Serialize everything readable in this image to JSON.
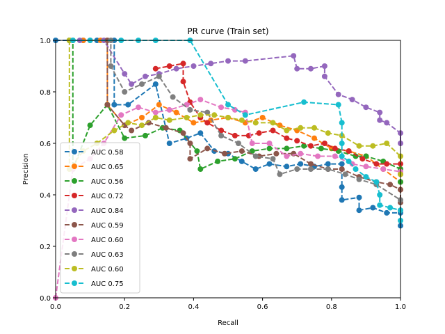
{
  "chart_data": {
    "type": "line",
    "title": "PR curve (Train set)",
    "xlabel": "Recall",
    "ylabel": "Precision",
    "xlim": [
      0.0,
      1.0
    ],
    "ylim": [
      0.0,
      1.0
    ],
    "xticks": [
      "0.0",
      "0.2",
      "0.4",
      "0.6",
      "0.8",
      "1.0"
    ],
    "yticks": [
      "0.0",
      "0.2",
      "0.4",
      "0.6",
      "0.8",
      "1.0"
    ],
    "grid": false,
    "legend_position": "lower-left",
    "line_style": "dashed",
    "marker": "circle",
    "series": [
      {
        "name": "AUC 0.58",
        "color": "#1f77b4",
        "points": [
          [
            0.0,
            1.0
          ],
          [
            0.04,
            1.0
          ],
          [
            0.08,
            1.0
          ],
          [
            0.12,
            1.0
          ],
          [
            0.17,
            1.0
          ],
          [
            0.17,
            0.75
          ],
          [
            0.21,
            0.75
          ],
          [
            0.29,
            0.83
          ],
          [
            0.33,
            0.6
          ],
          [
            0.38,
            0.62
          ],
          [
            0.42,
            0.64
          ],
          [
            0.46,
            0.57
          ],
          [
            0.5,
            0.56
          ],
          [
            0.54,
            0.53
          ],
          [
            0.58,
            0.5
          ],
          [
            0.62,
            0.52
          ],
          [
            0.67,
            0.51
          ],
          [
            0.71,
            0.52
          ],
          [
            0.75,
            0.51
          ],
          [
            0.79,
            0.52
          ],
          [
            0.83,
            0.52
          ],
          [
            0.83,
            0.43
          ],
          [
            0.83,
            0.38
          ],
          [
            0.88,
            0.39
          ],
          [
            0.88,
            0.34
          ],
          [
            0.92,
            0.35
          ],
          [
            0.96,
            0.33
          ],
          [
            1.0,
            0.33
          ],
          [
            1.0,
            0.28
          ]
        ]
      },
      {
        "name": "AUC 0.65",
        "color": "#ff7f0e",
        "points": [
          [
            0.04,
            1.0
          ],
          [
            0.08,
            1.0
          ],
          [
            0.13,
            1.0
          ],
          [
            0.15,
            1.0
          ],
          [
            0.15,
            0.75
          ],
          [
            0.2,
            0.67
          ],
          [
            0.25,
            0.7
          ],
          [
            0.3,
            0.75
          ],
          [
            0.35,
            0.72
          ],
          [
            0.4,
            0.68
          ],
          [
            0.45,
            0.69
          ],
          [
            0.5,
            0.7
          ],
          [
            0.55,
            0.68
          ],
          [
            0.6,
            0.7
          ],
          [
            0.65,
            0.67
          ],
          [
            0.7,
            0.65
          ],
          [
            0.75,
            0.62
          ],
          [
            0.8,
            0.58
          ],
          [
            0.85,
            0.57
          ],
          [
            0.9,
            0.55
          ],
          [
            0.95,
            0.5
          ],
          [
            1.0,
            0.45
          ],
          [
            1.0,
            0.42
          ]
        ]
      },
      {
        "name": "AUC 0.56",
        "color": "#2ca02c",
        "points": [
          [
            0.04,
            1.0
          ],
          [
            0.05,
            1.0
          ],
          [
            0.05,
            0.5
          ],
          [
            0.1,
            0.67
          ],
          [
            0.15,
            0.75
          ],
          [
            0.2,
            0.62
          ],
          [
            0.26,
            0.63
          ],
          [
            0.31,
            0.66
          ],
          [
            0.36,
            0.65
          ],
          [
            0.41,
            0.57
          ],
          [
            0.42,
            0.5
          ],
          [
            0.47,
            0.53
          ],
          [
            0.52,
            0.54
          ],
          [
            0.57,
            0.57
          ],
          [
            0.62,
            0.58
          ],
          [
            0.67,
            0.58
          ],
          [
            0.72,
            0.59
          ],
          [
            0.77,
            0.58
          ],
          [
            0.82,
            0.57
          ],
          [
            0.87,
            0.55
          ],
          [
            0.9,
            0.55
          ],
          [
            0.95,
            0.53
          ],
          [
            1.0,
            0.5
          ],
          [
            1.0,
            0.45
          ]
        ]
      },
      {
        "name": "AUC 0.72",
        "color": "#d62728",
        "points": [
          [
            0.29,
            0.89
          ],
          [
            0.33,
            0.9
          ],
          [
            0.37,
            0.91
          ],
          [
            0.37,
            0.84
          ],
          [
            0.39,
            0.76
          ],
          [
            0.42,
            0.7
          ],
          [
            0.44,
            0.68
          ],
          [
            0.48,
            0.65
          ],
          [
            0.52,
            0.63
          ],
          [
            0.56,
            0.63
          ],
          [
            0.59,
            0.64
          ],
          [
            0.63,
            0.65
          ],
          [
            0.67,
            0.62
          ],
          [
            0.7,
            0.61
          ],
          [
            0.74,
            0.59
          ],
          [
            0.78,
            0.6
          ],
          [
            0.81,
            0.58
          ],
          [
            0.85,
            0.57
          ],
          [
            0.89,
            0.54
          ],
          [
            0.93,
            0.52
          ],
          [
            0.96,
            0.52
          ],
          [
            1.0,
            0.52
          ],
          [
            1.0,
            0.48
          ]
        ]
      },
      {
        "name": "AUC 0.84",
        "color": "#9467bd",
        "points": [
          [
            0.07,
            1.0
          ],
          [
            0.14,
            1.0
          ],
          [
            0.2,
            0.87
          ],
          [
            0.22,
            0.83
          ],
          [
            0.26,
            0.86
          ],
          [
            0.3,
            0.87
          ],
          [
            0.35,
            0.89
          ],
          [
            0.4,
            0.9
          ],
          [
            0.45,
            0.91
          ],
          [
            0.5,
            0.92
          ],
          [
            0.55,
            0.92
          ],
          [
            0.69,
            0.94
          ],
          [
            0.7,
            0.89
          ],
          [
            0.74,
            0.89
          ],
          [
            0.78,
            0.9
          ],
          [
            0.78,
            0.86
          ],
          [
            0.82,
            0.79
          ],
          [
            0.86,
            0.77
          ],
          [
            0.9,
            0.74
          ],
          [
            0.94,
            0.72
          ],
          [
            0.94,
            0.69
          ],
          [
            0.96,
            0.68
          ],
          [
            1.0,
            0.64
          ],
          [
            1.0,
            0.6
          ]
        ]
      },
      {
        "name": "AUC 0.59",
        "color": "#8c564b",
        "points": [
          [
            0.15,
            1.0
          ],
          [
            0.15,
            0.75
          ],
          [
            0.2,
            0.67
          ],
          [
            0.22,
            0.65
          ],
          [
            0.27,
            0.68
          ],
          [
            0.32,
            0.66
          ],
          [
            0.37,
            0.64
          ],
          [
            0.39,
            0.6
          ],
          [
            0.39,
            0.54
          ],
          [
            0.44,
            0.58
          ],
          [
            0.49,
            0.56
          ],
          [
            0.54,
            0.57
          ],
          [
            0.59,
            0.55
          ],
          [
            0.64,
            0.56
          ],
          [
            0.69,
            0.56
          ],
          [
            0.74,
            0.52
          ],
          [
            0.79,
            0.5
          ],
          [
            0.83,
            0.5
          ],
          [
            0.88,
            0.47
          ],
          [
            0.93,
            0.45
          ],
          [
            0.97,
            0.44
          ],
          [
            1.0,
            0.42
          ],
          [
            1.0,
            0.37
          ]
        ]
      },
      {
        "name": "AUC 0.60",
        "color": "#e377c2",
        "points": [
          [
            0.0,
            0.0
          ],
          [
            0.05,
            0.5
          ],
          [
            0.1,
            0.54
          ],
          [
            0.14,
            0.6
          ],
          [
            0.19,
            0.71
          ],
          [
            0.24,
            0.74
          ],
          [
            0.29,
            0.72
          ],
          [
            0.33,
            0.73
          ],
          [
            0.38,
            0.75
          ],
          [
            0.42,
            0.77
          ],
          [
            0.48,
            0.74
          ],
          [
            0.52,
            0.73
          ],
          [
            0.55,
            0.72
          ],
          [
            0.57,
            0.6
          ],
          [
            0.62,
            0.6
          ],
          [
            0.67,
            0.55
          ],
          [
            0.71,
            0.56
          ],
          [
            0.76,
            0.55
          ],
          [
            0.81,
            0.55
          ],
          [
            0.86,
            0.52
          ],
          [
            0.9,
            0.51
          ],
          [
            0.95,
            0.5
          ],
          [
            1.0,
            0.49
          ]
        ]
      },
      {
        "name": "AUC 0.63",
        "color": "#7f7f7f",
        "points": [
          [
            0.05,
            1.0
          ],
          [
            0.1,
            1.0
          ],
          [
            0.16,
            1.0
          ],
          [
            0.16,
            0.9
          ],
          [
            0.2,
            0.8
          ],
          [
            0.25,
            0.83
          ],
          [
            0.3,
            0.86
          ],
          [
            0.34,
            0.78
          ],
          [
            0.39,
            0.73
          ],
          [
            0.44,
            0.72
          ],
          [
            0.48,
            0.63
          ],
          [
            0.53,
            0.6
          ],
          [
            0.58,
            0.55
          ],
          [
            0.63,
            0.54
          ],
          [
            0.65,
            0.48
          ],
          [
            0.7,
            0.5
          ],
          [
            0.74,
            0.5
          ],
          [
            0.79,
            0.5
          ],
          [
            0.84,
            0.48
          ],
          [
            0.88,
            0.46
          ],
          [
            0.93,
            0.44
          ],
          [
            1.0,
            0.38
          ],
          [
            1.0,
            0.34
          ]
        ]
      },
      {
        "name": "AUC 0.60",
        "color": "#bcbd22",
        "points": [
          [
            0.04,
            1.0
          ],
          [
            0.04,
            0.5
          ],
          [
            0.08,
            0.57
          ],
          [
            0.12,
            0.6
          ],
          [
            0.17,
            0.65
          ],
          [
            0.21,
            0.68
          ],
          [
            0.25,
            0.67
          ],
          [
            0.29,
            0.7
          ],
          [
            0.33,
            0.69
          ],
          [
            0.38,
            0.7
          ],
          [
            0.42,
            0.71
          ],
          [
            0.46,
            0.71
          ],
          [
            0.5,
            0.7
          ],
          [
            0.54,
            0.69
          ],
          [
            0.58,
            0.68
          ],
          [
            0.63,
            0.68
          ],
          [
            0.67,
            0.65
          ],
          [
            0.71,
            0.66
          ],
          [
            0.75,
            0.66
          ],
          [
            0.79,
            0.64
          ],
          [
            0.83,
            0.63
          ],
          [
            0.88,
            0.59
          ],
          [
            0.92,
            0.59
          ],
          [
            0.96,
            0.6
          ],
          [
            1.0,
            0.55
          ],
          [
            1.0,
            0.48
          ]
        ]
      },
      {
        "name": "AUC 0.75",
        "color": "#17becf",
        "points": [
          [
            0.05,
            1.0
          ],
          [
            0.1,
            1.0
          ],
          [
            0.19,
            1.0
          ],
          [
            0.24,
            1.0
          ],
          [
            0.29,
            1.0
          ],
          [
            0.39,
            1.0
          ],
          [
            0.5,
            0.75
          ],
          [
            0.55,
            0.71
          ],
          [
            0.72,
            0.76
          ],
          [
            0.82,
            0.75
          ],
          [
            0.83,
            0.68
          ],
          [
            0.83,
            0.6
          ],
          [
            0.83,
            0.55
          ],
          [
            0.85,
            0.53
          ],
          [
            0.87,
            0.5
          ],
          [
            0.9,
            0.47
          ],
          [
            0.93,
            0.45
          ],
          [
            0.94,
            0.4
          ],
          [
            0.94,
            0.36
          ],
          [
            0.97,
            0.35
          ],
          [
            1.0,
            0.34
          ],
          [
            1.0,
            0.3
          ]
        ]
      }
    ]
  }
}
